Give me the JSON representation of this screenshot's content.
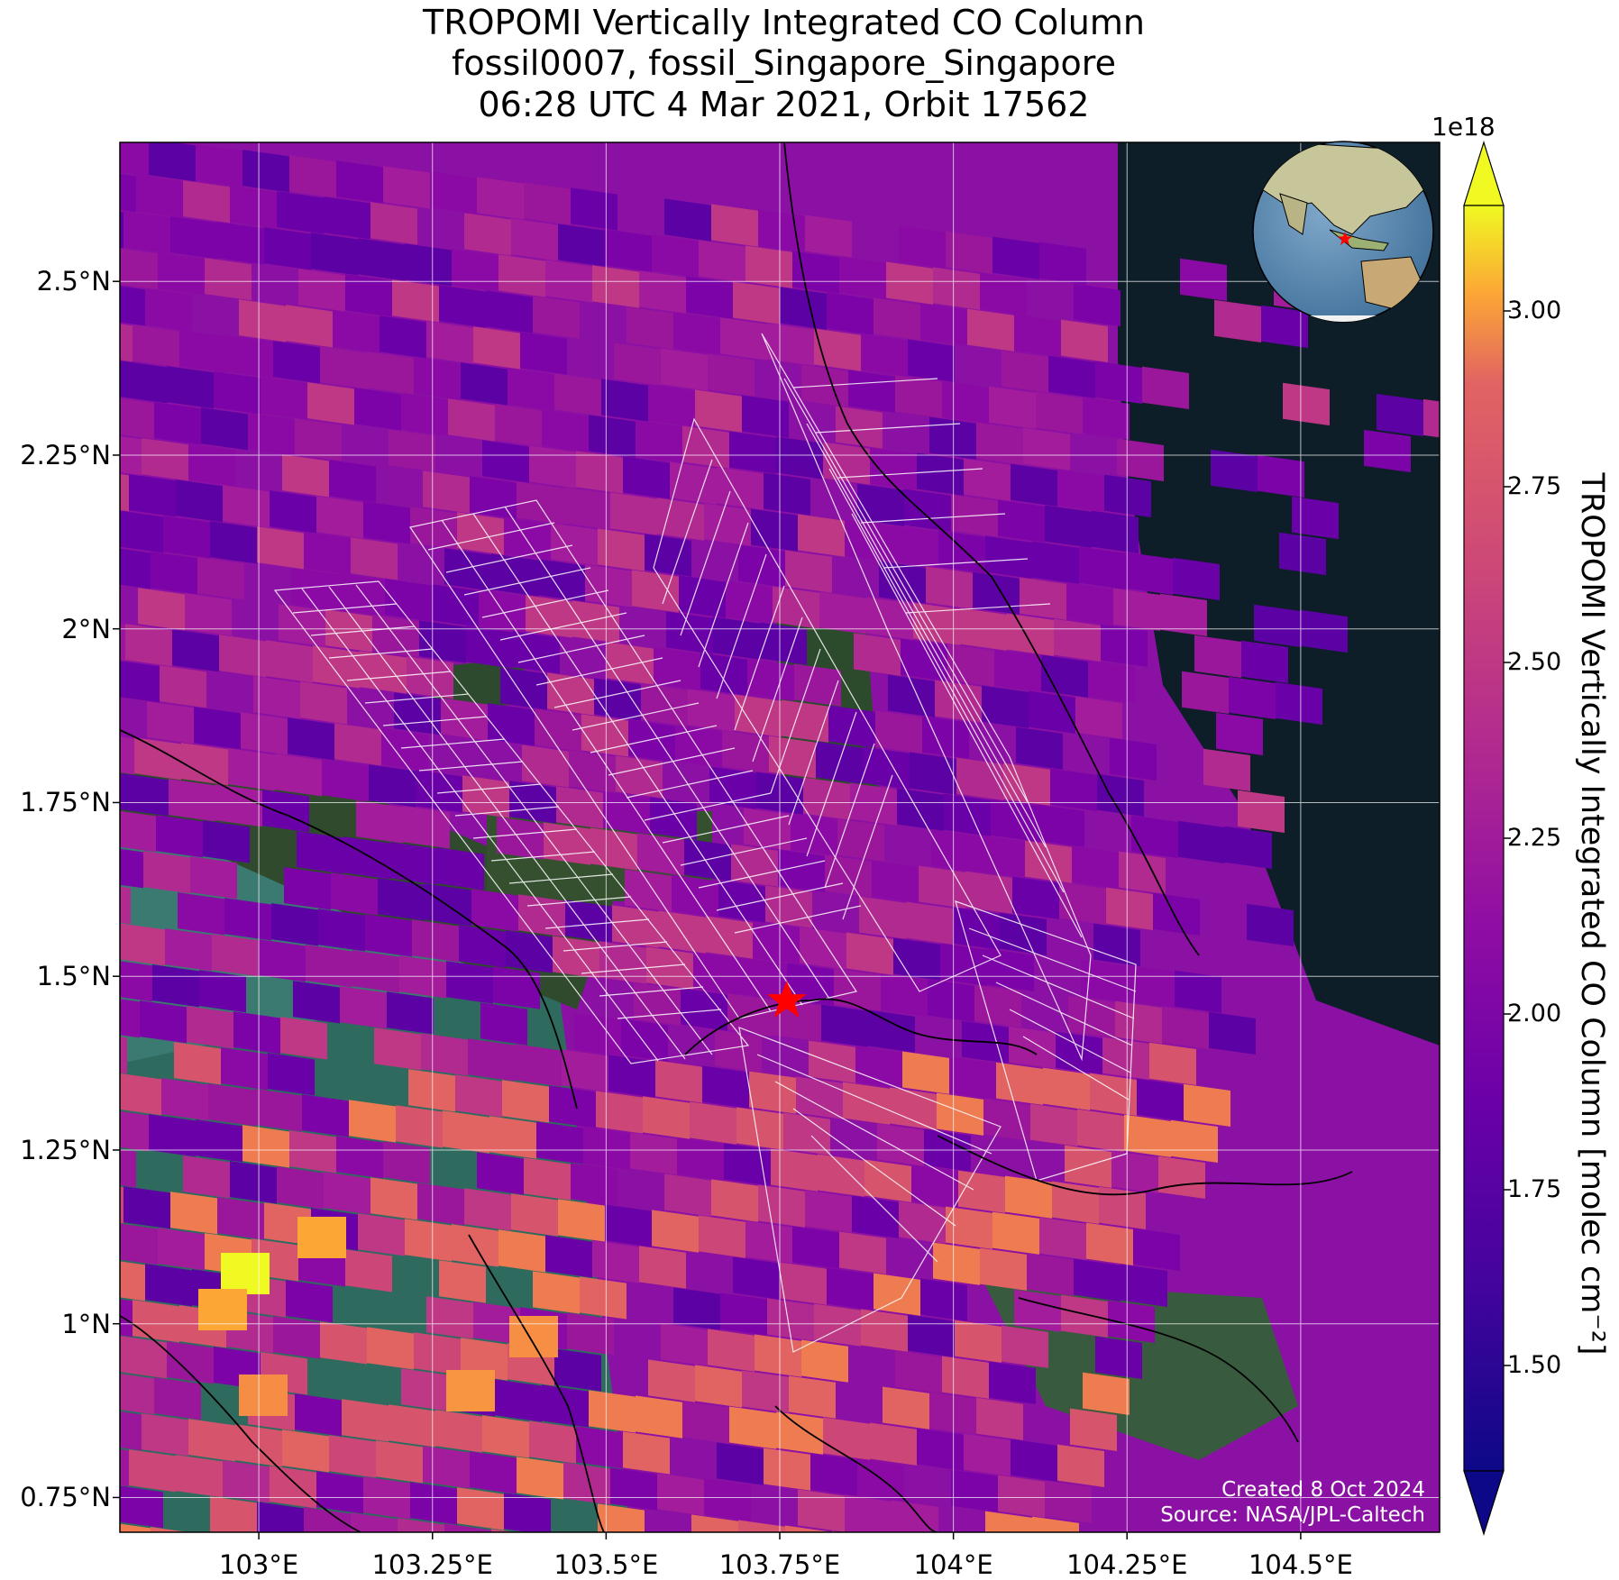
{
  "title": {
    "line1": "TROPOMI Vertically Integrated CO Column",
    "line2": "fossil0007, fossil_Singapore_Singapore",
    "line3": "06:28 UTC 4 Mar 2021, Orbit 17562"
  },
  "map": {
    "extent": {
      "lon_min": 102.8,
      "lon_max": 104.7,
      "lat_min": 0.7,
      "lat_max": 2.7
    },
    "lat_ticks": [
      {
        "value": 2.5,
        "label": "2.5°N"
      },
      {
        "value": 2.25,
        "label": "2.25°N"
      },
      {
        "value": 2.0,
        "label": "2°N"
      },
      {
        "value": 1.75,
        "label": "1.75°N"
      },
      {
        "value": 1.5,
        "label": "1.5°N"
      },
      {
        "value": 1.25,
        "label": "1.25°N"
      },
      {
        "value": 1.0,
        "label": "1°N"
      },
      {
        "value": 0.75,
        "label": "0.75°N"
      }
    ],
    "lon_ticks": [
      {
        "value": 103.0,
        "label": "103°E"
      },
      {
        "value": 103.25,
        "label": "103.25°E"
      },
      {
        "value": 103.5,
        "label": "103.5°E"
      },
      {
        "value": 103.75,
        "label": "103.75°E"
      },
      {
        "value": 104.0,
        "label": "104°E"
      },
      {
        "value": 104.25,
        "label": "104.25°E"
      },
      {
        "value": 104.5,
        "label": "104.5°E"
      }
    ],
    "target_marker": {
      "lon": 103.76,
      "lat": 1.465,
      "color": "#ff0000",
      "icon": "star-icon"
    },
    "inset_globe": {
      "icon": "globe-icon",
      "marker_color": "#ff0000"
    },
    "grid": true
  },
  "colorbar": {
    "label": "TROPOMI Vertically Integrated CO Column [molec cm⁻²]",
    "exponent": "1e18",
    "vmin": 1.35,
    "vmax": 3.15,
    "extend": "both",
    "colormap": "plasma",
    "ticks": [
      {
        "value": 1.5,
        "label": "1.50"
      },
      {
        "value": 1.75,
        "label": "1.75"
      },
      {
        "value": 2.0,
        "label": "2.00"
      },
      {
        "value": 2.25,
        "label": "2.25"
      },
      {
        "value": 2.5,
        "label": "2.50"
      },
      {
        "value": 2.75,
        "label": "2.75"
      },
      {
        "value": 3.0,
        "label": "3.00"
      }
    ]
  },
  "credits": {
    "created": "Created 8 Oct 2024",
    "source": "Source: NASA/JPL-Caltech"
  }
}
